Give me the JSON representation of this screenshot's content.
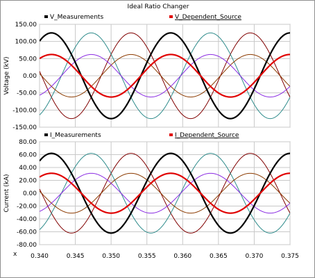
{
  "title": "Ideal Ratio Changer",
  "x_axis_marker": "x",
  "chart_data": [
    {
      "type": "line",
      "ylabel": "Voltage (kV)",
      "ylim": [
        -150,
        150
      ],
      "yticks": [
        "150.00",
        "100.00",
        "50.00",
        "0.00",
        "-50.00",
        "-100.00",
        "-150.00"
      ],
      "xlim": [
        0.34,
        0.375
      ],
      "xticks": [
        "0.340",
        "0.345",
        "0.350",
        "0.355",
        "0.360",
        "0.365",
        "0.370",
        "0.375"
      ],
      "grid": true,
      "legend": [
        "V_Measurements",
        "V_Dependent_Source"
      ],
      "frequency_hz": 60,
      "series": [
        {
          "name": "V_Measurements",
          "color": "#000000",
          "amplitude": 125,
          "phase_deg": 270,
          "width": 2.2
        },
        {
          "name": "",
          "color": "#800000",
          "amplitude": 125,
          "phase_deg": 30,
          "width": 1
        },
        {
          "name": "",
          "color": "#2e8b8b",
          "amplitude": 125,
          "phase_deg": 150,
          "width": 1
        },
        {
          "name": "V_Dependent_Source",
          "color": "#e00000",
          "amplitude": 62,
          "phase_deg": 270,
          "width": 2.2
        },
        {
          "name": "",
          "color": "#8b3a00",
          "amplitude": 62,
          "phase_deg": 30,
          "width": 1
        },
        {
          "name": "",
          "color": "#8a2be2",
          "amplitude": 62,
          "phase_deg": 150,
          "width": 1
        }
      ]
    },
    {
      "type": "line",
      "ylabel": "Current (kA)",
      "ylim": [
        -80,
        80
      ],
      "yticks": [
        "80.00",
        "60.00",
        "40.00",
        "20.00",
        "0.00",
        "-20.00",
        "-40.00",
        "-60.00",
        "-80.00"
      ],
      "xlim": [
        0.34,
        0.375
      ],
      "xticks": [
        "0.340",
        "0.345",
        "0.350",
        "0.355",
        "0.360",
        "0.365",
        "0.370",
        "0.375"
      ],
      "grid": true,
      "legend": [
        "I_Measurements",
        "I_Dependent_Source"
      ],
      "frequency_hz": 60,
      "series": [
        {
          "name": "I_Measurements",
          "color": "#000000",
          "amplitude": 62,
          "phase_deg": 270,
          "width": 2.2
        },
        {
          "name": "",
          "color": "#800000",
          "amplitude": 62,
          "phase_deg": 30,
          "width": 1
        },
        {
          "name": "",
          "color": "#2e8b8b",
          "amplitude": 62,
          "phase_deg": 150,
          "width": 1
        },
        {
          "name": "I_Dependent_Source",
          "color": "#e00000",
          "amplitude": 31,
          "phase_deg": 270,
          "width": 2.2
        },
        {
          "name": "",
          "color": "#8b3a00",
          "amplitude": 31,
          "phase_deg": 30,
          "width": 1
        },
        {
          "name": "",
          "color": "#8a2be2",
          "amplitude": 31,
          "phase_deg": 150,
          "width": 1
        }
      ]
    }
  ]
}
